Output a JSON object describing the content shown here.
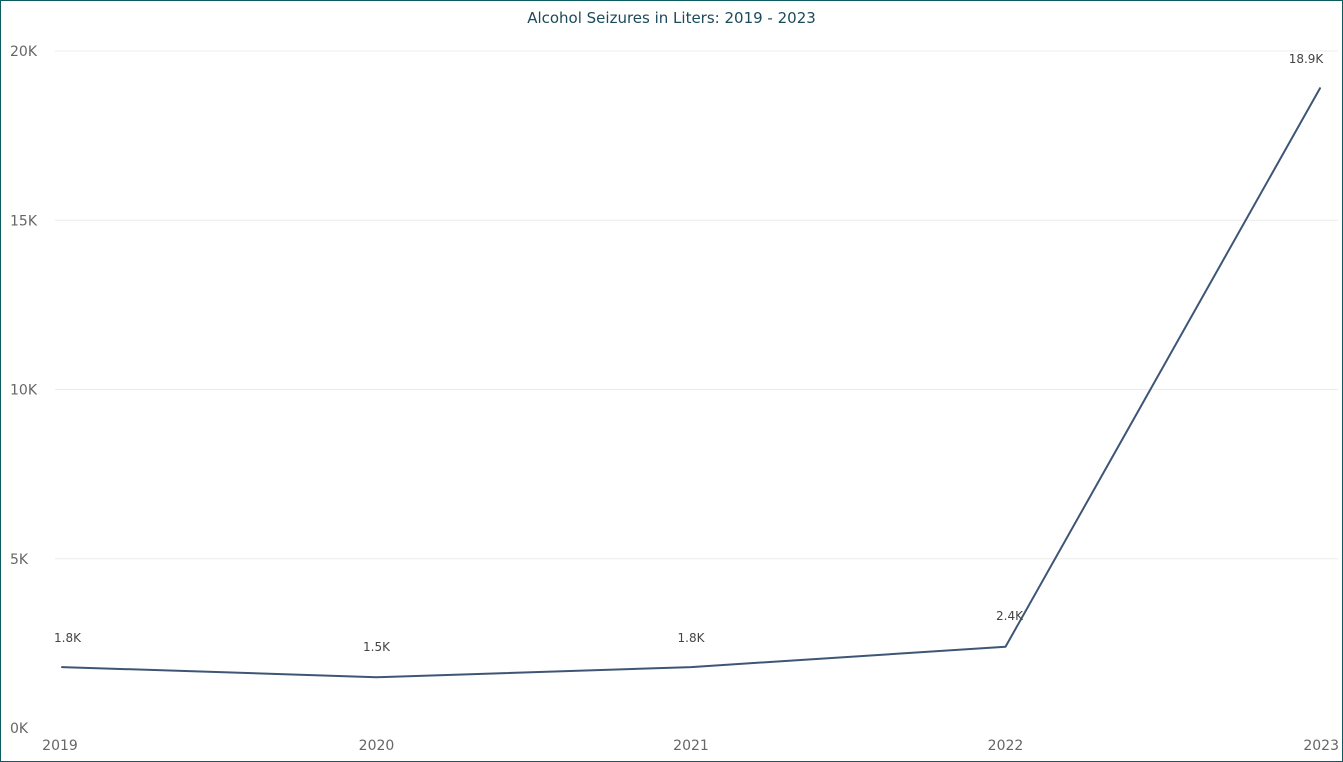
{
  "chart_data": {
    "type": "line",
    "title": "Alcohol Seizures in Liters: 2019 - 2023",
    "xlabel": "",
    "ylabel": "",
    "x": [
      "2019",
      "2020",
      "2021",
      "2022",
      "2023"
    ],
    "series": [
      {
        "values": [
          1800,
          1500,
          1800,
          2400,
          18900
        ],
        "data_labels": [
          "1.8K",
          "1.5K",
          "1.8K",
          "2.4K",
          "18.9K"
        ],
        "color": "#3d5676"
      }
    ],
    "ylim": [
      0,
      20000
    ],
    "y_ticks": [
      0,
      5000,
      10000,
      15000,
      20000
    ],
    "y_tick_labels": [
      "0K",
      "5K",
      "10K",
      "15K",
      "20K"
    ],
    "grid": true,
    "legend": "none"
  }
}
